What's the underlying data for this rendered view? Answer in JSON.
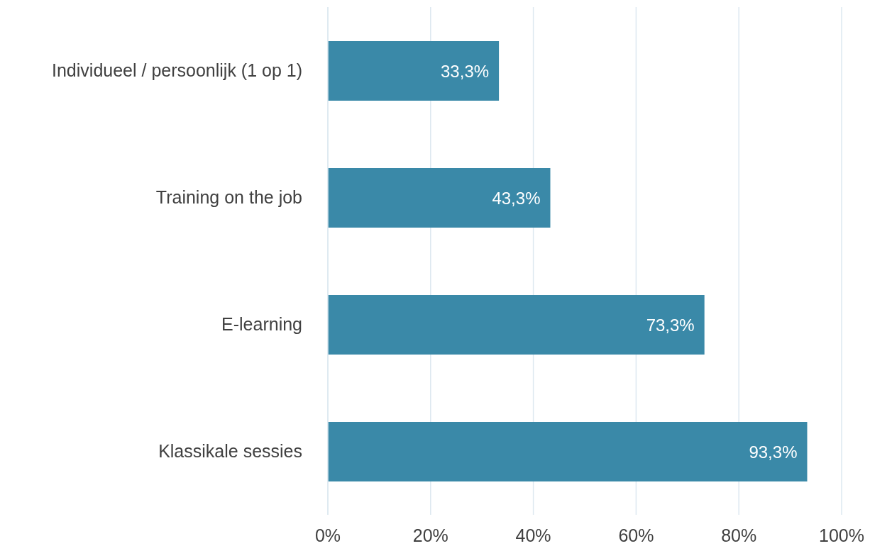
{
  "chart_data": {
    "type": "bar",
    "orientation": "horizontal",
    "categories": [
      "Individueel / persoonlijk (1 op 1)",
      "Training on the job",
      "E-learning",
      "Klassikale sessies"
    ],
    "values": [
      33.3,
      43.3,
      73.3,
      93.3
    ],
    "value_labels": [
      "33,3%",
      "43,3%",
      "73,3%",
      "93,3%"
    ],
    "color": "#3a89a8",
    "xlim": [
      0,
      100
    ],
    "xticks": [
      {
        "value": 0,
        "label": "0%"
      },
      {
        "value": 20,
        "label": "20%"
      },
      {
        "value": 40,
        "label": "40%"
      },
      {
        "value": 60,
        "label": "60%"
      },
      {
        "value": 80,
        "label": "80%"
      },
      {
        "value": 100,
        "label": "100%"
      }
    ],
    "grid": "x"
  }
}
